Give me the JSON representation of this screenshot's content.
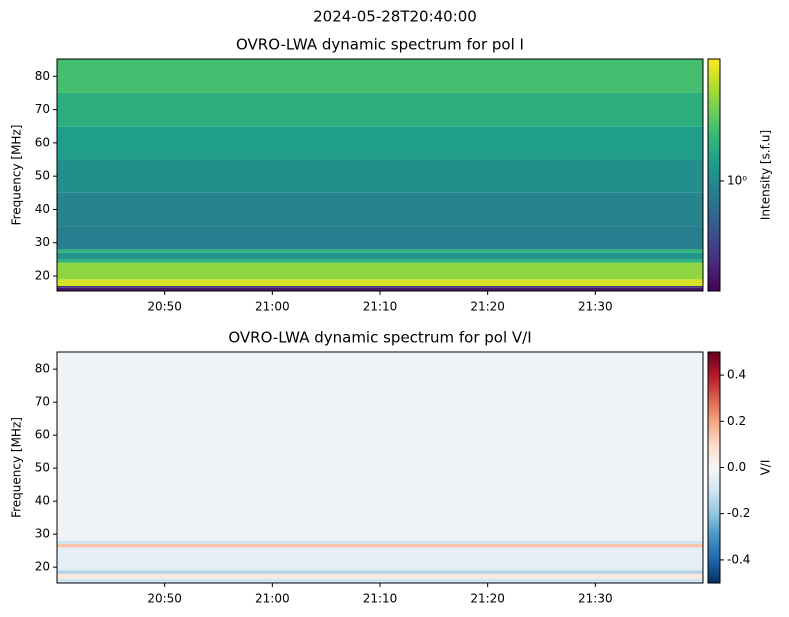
{
  "title": "2024-05-28T20:40:00",
  "chart_data": [
    {
      "type": "heatmap",
      "title": "OVRO-LWA dynamic spectrum for pol I",
      "ylabel": "Frequency [MHz]",
      "ylim": [
        15.5,
        85.2
      ],
      "yticks": [
        20,
        30,
        40,
        50,
        60,
        70,
        80
      ],
      "xlim": [
        "20:40",
        "21:40"
      ],
      "xticks": [
        "20:50",
        "21:00",
        "21:10",
        "21:20",
        "21:30"
      ],
      "bands": {
        "edges": [
          15.5,
          16.5,
          17,
          19,
          24,
          25,
          27,
          28,
          35,
          45,
          55,
          65,
          75,
          85.2
        ],
        "values": [
          0.4,
          0.5,
          2.8,
          2.2,
          1.5,
          1.1,
          1.5,
          0.9,
          0.95,
          1.05,
          1.2,
          1.4,
          1.65
        ]
      },
      "colorbar": {
        "label": "Intensity [s.f.u]",
        "scale": "log",
        "colormap": "viridis",
        "lim": [
          0.35,
          3.2
        ],
        "ticks": [
          {
            "value": 1,
            "label": "10⁰"
          }
        ]
      }
    },
    {
      "type": "heatmap",
      "title": "OVRO-LWA dynamic spectrum for pol V/I",
      "ylabel": "Frequency [MHz]",
      "ylim": [
        15.2,
        85.2
      ],
      "yticks": [
        20,
        30,
        40,
        50,
        60,
        70,
        80
      ],
      "xlim": [
        "20:40",
        "21:40"
      ],
      "xticks": [
        "20:50",
        "21:00",
        "21:10",
        "21:20",
        "21:30"
      ],
      "bands": {
        "edges": [
          15.2,
          16.5,
          18,
          19,
          26,
          27,
          28,
          85.2
        ],
        "values": [
          -0.1,
          0.05,
          -0.15,
          -0.05,
          0.15,
          -0.1,
          -0.02
        ]
      },
      "colorbar": {
        "label": "V/I",
        "scale": "linear",
        "colormap": "RdBu_r",
        "lim": [
          -0.5,
          0.5
        ],
        "ticks": [
          -0.4,
          -0.2,
          0.0,
          0.2,
          0.4
        ]
      }
    }
  ]
}
